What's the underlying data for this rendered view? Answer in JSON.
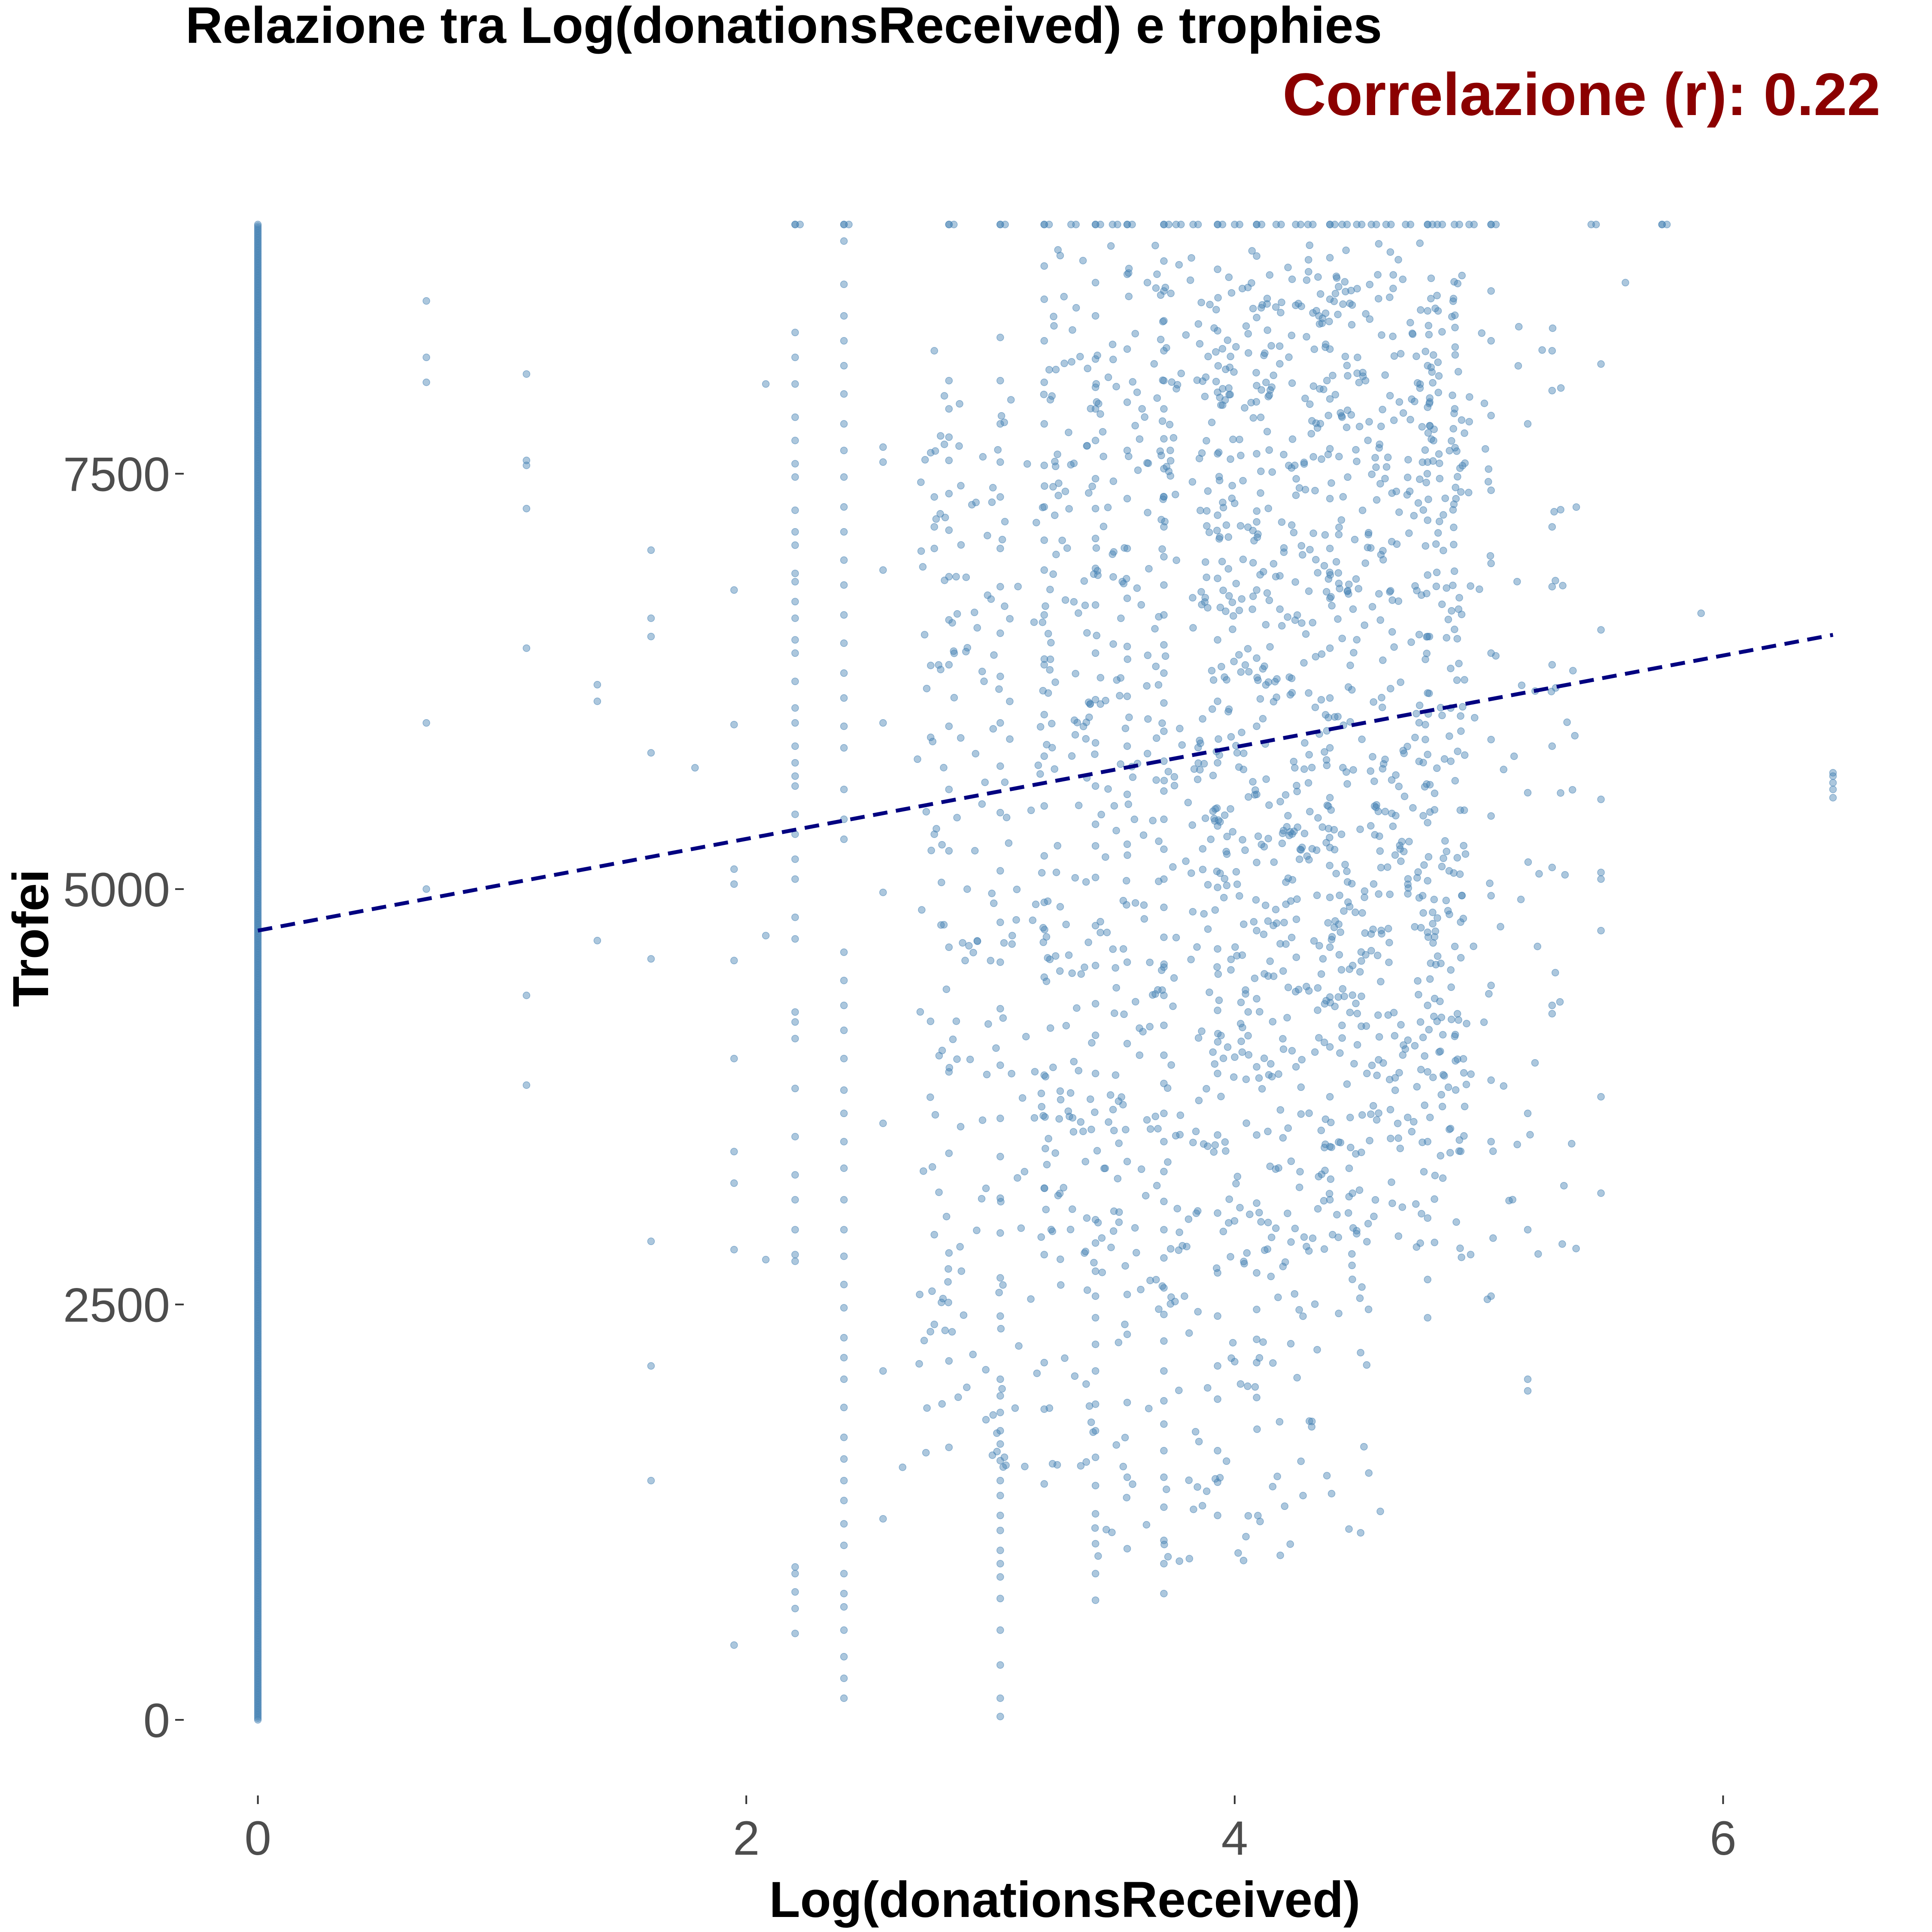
{
  "colors": {
    "points": "#4682b4",
    "trend": "#000080",
    "subtitle": "#8b0000",
    "tick_text": "#4d4d4d"
  },
  "chart_data": {
    "type": "scatter",
    "title": "Relazione tra Log(donationsReceived) e trophies",
    "subtitle": "Correlazione (r): 0.22",
    "xlabel": "Log(donationsReceived)",
    "ylabel": "Trofei",
    "xlim": [
      -0.3,
      6.75
    ],
    "ylim": [
      -450,
      9550
    ],
    "x_ticks": [
      0,
      2,
      4,
      6
    ],
    "x_tick_labels": [
      "0",
      "2",
      "4",
      "6"
    ],
    "y_ticks": [
      0,
      2500,
      5000,
      7500
    ],
    "y_tick_labels": [
      "0",
      "2500",
      "5000",
      "7500"
    ],
    "grid": false,
    "legend": "none",
    "trend_line": {
      "style": "dashed",
      "x": [
        0,
        6.45
      ],
      "y": [
        4750,
        6530
      ]
    },
    "clusters": [
      {
        "x": 0.69,
        "y": [
          5000,
          6000,
          8050,
          8200,
          8540
        ]
      },
      {
        "x": 1.1,
        "y": [
          3820,
          4360,
          6450,
          7290,
          7550,
          7580,
          8100
        ]
      },
      {
        "x": 1.39,
        "y": [
          4690,
          6130,
          6230
        ]
      },
      {
        "x": 1.61,
        "y": [
          1440,
          2130,
          2880,
          4580,
          5820,
          6520,
          6630,
          7040
        ]
      },
      {
        "x": 1.79,
        "y": [
          5730
        ]
      },
      {
        "x": 1.95,
        "y": [
          450,
          2830,
          3230,
          3420,
          3980,
          4570,
          5030,
          5120,
          5990,
          6800
        ]
      },
      {
        "x": 2.08,
        "y": [
          2770,
          4720,
          8040
        ]
      },
      {
        "x": 2.2,
        "y": [
          520,
          670,
          770,
          880,
          920,
          2760,
          2800,
          2950,
          3130,
          3280,
          3510,
          3800,
          4100,
          4200,
          4260,
          4700,
          4830,
          5060,
          5180,
          5330,
          5450,
          5620,
          5680,
          5760,
          5860,
          6000,
          6090,
          6250,
          6420,
          6500,
          6630,
          6730,
          6850,
          6900,
          7070,
          7150,
          7280,
          7480,
          7560,
          7700,
          7840,
          8040,
          8200,
          8350,
          9000
        ]
      },
      {
        "x": 2.4,
        "y": [
          130,
          250,
          380,
          540,
          680,
          760,
          880,
          1050,
          1180,
          1320,
          1440,
          1570,
          1700,
          1880,
          2050,
          2180,
          2300,
          2480,
          2620,
          2790,
          2950,
          3130,
          3320,
          3480,
          3650,
          3790,
          3980,
          4150,
          4300,
          4450,
          4620,
          5300,
          5420,
          5600,
          5850,
          5980,
          6150,
          6300,
          6480,
          6650,
          6830,
          6980,
          7150,
          7300,
          7480,
          7640,
          7800,
          7980,
          8150,
          8300,
          8450,
          8640,
          8900,
          9000
        ]
      },
      {
        "x": 2.56,
        "y": [
          1210,
          2100,
          3590,
          4980,
          6000,
          6920,
          7570,
          7660
        ]
      },
      {
        "x": 2.64,
        "y": [
          1520
        ]
      },
      {
        "x": 2.71,
        "y": [
          2560
        ]
      },
      {
        "x": 2.77,
        "y": [
          2380,
          2920,
          5330,
          7050,
          7180,
          7360,
          8240
        ]
      },
      {
        "x": 2.83,
        "y": [
          1640,
          2160,
          2810,
          3410,
          3900,
          4650,
          5230,
          5600,
          5980,
          6350,
          6620,
          6880,
          7160,
          7380,
          7580,
          7720,
          7890,
          8060,
          9000
        ]
      },
      {
        "x": 3.04,
        "y": [
          20,
          130,
          330,
          540,
          730,
          860,
          940,
          1020,
          1140,
          1230,
          1350,
          1440,
          1560,
          1660,
          1740,
          1850,
          1950,
          2050,
          2430,
          2660,
          2930,
          3140,
          3390,
          3620,
          3940,
          4280,
          4560,
          4800,
          5110,
          5460,
          5740,
          6000,
          6280,
          6540,
          6820,
          7050,
          7360,
          7570,
          7800,
          8060,
          8320,
          9000
        ]
      },
      {
        "x": 3.22,
        "y": [
          1420,
          1870,
          2150,
          2800,
          3200,
          3880,
          4470,
          4920,
          5200,
          5500,
          5800,
          6050,
          6350,
          6650,
          6920,
          7100,
          7300,
          7550,
          7800,
          8050,
          8300,
          8550,
          8750,
          9000
        ]
      },
      {
        "x": 3.43,
        "y": [
          720,
          880,
          1060,
          1240,
          1410,
          1580,
          1740,
          1900,
          2100,
          2260,
          2420,
          2550,
          2700,
          2870,
          3010,
          3890,
          4120,
          4310,
          4540,
          4780,
          5070,
          5260,
          5390,
          5620,
          5880,
          6140,
          6420,
          6710,
          6930,
          7110,
          7290,
          7470,
          7700,
          7890,
          8020,
          8190,
          8450,
          8650,
          9000
        ]
      },
      {
        "x": 3.56,
        "y": [
          1030,
          1460,
          1910,
          2320,
          2560,
          3360,
          4070,
          4560,
          5270,
          5570,
          5860,
          6160,
          6460,
          6750,
          7050,
          7350,
          7640,
          7930,
          8250,
          8700,
          9000
        ]
      },
      {
        "x": 3.71,
        "y": [
          760,
          940,
          1080,
          1280,
          1460,
          1620,
          1780,
          1920,
          2100,
          2280,
          2440,
          2600,
          2780,
          2950,
          3120,
          3300,
          3480,
          3650,
          3830,
          4000,
          4180,
          4360,
          4530,
          4710,
          4890,
          5060,
          5240,
          5420,
          5590,
          5770,
          5950,
          6120,
          6300,
          6470,
          6650,
          6830,
          7000,
          7180,
          7360,
          7530,
          7710,
          7890,
          8060,
          8240,
          8420,
          8600,
          8780,
          9000
        ]
      },
      {
        "x": 3.93,
        "y": [
          1230,
          1430,
          1620,
          1930,
          2130,
          2430,
          2690,
          3050,
          3520,
          3890,
          4270,
          4640,
          5010,
          5380,
          5760,
          6130,
          6500,
          6870,
          7250,
          7620,
          7990,
          8360,
          8730,
          9000
        ]
      },
      {
        "x": 4.09,
        "y": [
          1940,
          2150,
          2290,
          2470,
          2690,
          3110,
          3520,
          3930,
          4340,
          4750,
          5160,
          5570,
          5980,
          6390,
          6800,
          7210,
          7620,
          8030,
          8440,
          8810,
          9000
        ]
      },
      {
        "x": 4.39,
        "y": [
          3130,
          3450,
          3750,
          4050,
          4350,
          4650,
          4950,
          5250,
          5550,
          5850,
          6150,
          6450,
          6750,
          7050,
          7350,
          7650,
          7950,
          8250,
          8550,
          8800,
          9000
        ]
      },
      {
        "x": 4.79,
        "y": [
          2420,
          2650,
          3020,
          3480,
          3900,
          4300,
          4740,
          5050,
          5400,
          5810,
          6180,
          6520,
          6890,
          7220,
          7570,
          7900,
          8150,
          8480,
          9000
        ]
      },
      {
        "x": 5.05,
        "y": [
          2550,
          3480,
          3850,
          4420,
          4960,
          5440,
          5900,
          6420,
          6960,
          7400,
          7850,
          8300,
          8600,
          9000
        ]
      },
      {
        "x": 5.2,
        "y": [
          1980,
          2050,
          2950,
          3650,
          5580,
          7800
        ]
      },
      {
        "x": 5.3,
        "y": [
          4250,
          4300,
          5130,
          5860,
          6350,
          6820,
          7180,
          8000,
          8240
        ]
      },
      {
        "x": 5.5,
        "y": [
          3170,
          3750,
          4750,
          5060,
          5100,
          5540,
          6560,
          8160
        ]
      },
      {
        "x": 5.6,
        "y": [
          8650
        ]
      },
      {
        "x": 5.75,
        "y": [
          9000
        ]
      },
      {
        "x": 5.91,
        "y": [
          6660
        ]
      },
      {
        "x": 6.45,
        "y": [
          5550,
          5600,
          5640,
          5680,
          5700
        ]
      }
    ],
    "clouds": [
      {
        "x_range": [
          3.2,
          4.95
        ],
        "y_range": [
          2800,
          8900
        ],
        "count": 950
      },
      {
        "x_range": [
          3.85,
          4.95
        ],
        "y_range": [
          3400,
          8700
        ],
        "count": 450
      },
      {
        "x_range": [
          2.7,
          3.3
        ],
        "y_range": [
          1500,
          8000
        ],
        "count": 200
      },
      {
        "x_range": [
          3.3,
          4.6
        ],
        "y_range": [
          900,
          2800
        ],
        "count": 110
      },
      {
        "x_range": [
          4.9,
          5.4
        ],
        "y_range": [
          2500,
          8400
        ],
        "count": 70
      }
    ],
    "top_cap_row": {
      "y": 9000,
      "x": [
        2.2,
        2.4,
        2.83,
        3.04,
        3.22,
        3.33,
        3.43,
        3.5,
        3.56,
        3.71,
        3.76,
        3.83,
        3.93,
        4.0,
        4.09,
        4.17,
        4.25,
        4.3,
        4.39,
        4.44,
        4.5,
        4.56,
        4.62,
        4.7,
        4.79,
        4.83,
        4.9,
        4.96,
        5.05,
        5.46,
        5.75
      ]
    },
    "zero_column": {
      "x": 0,
      "y_range": [
        0,
        9000
      ],
      "count": 900
    }
  }
}
